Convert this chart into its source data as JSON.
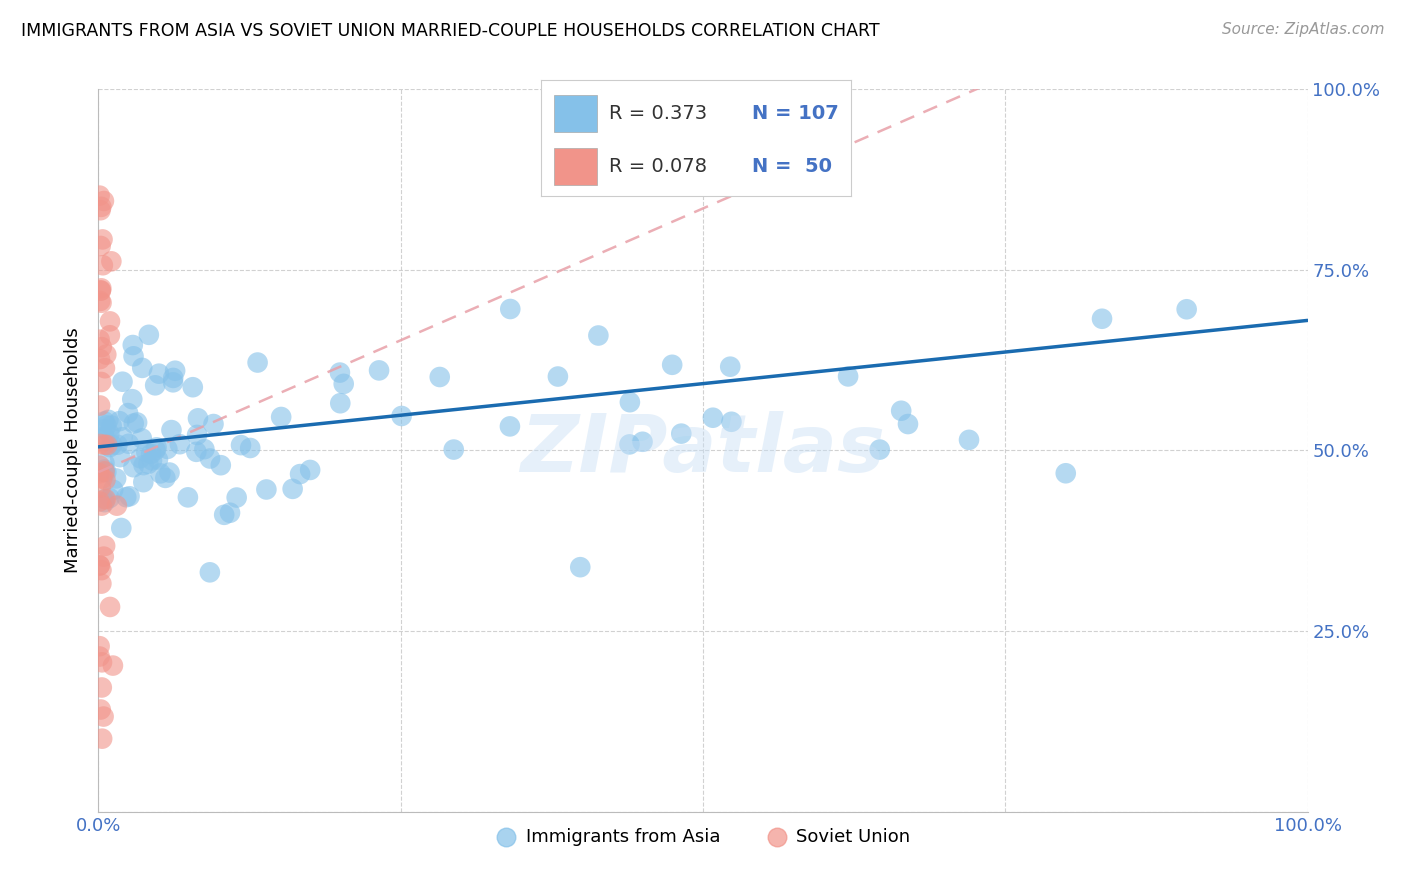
{
  "title": "IMMIGRANTS FROM ASIA VS SOVIET UNION MARRIED-COUPLE HOUSEHOLDS CORRELATION CHART",
  "source": "Source: ZipAtlas.com",
  "ylabel": "Married-couple Households",
  "watermark": "ZIPatlas",
  "asia_R": 0.373,
  "asia_N": 107,
  "soviet_R": 0.078,
  "soviet_N": 50,
  "asia_color": "#85C1E9",
  "soviet_color": "#F1948A",
  "asia_line_color": "#1A6BB0",
  "soviet_line_color": "#E8A0A8",
  "tick_color": "#4472C4",
  "grid_color": "#CCCCCC",
  "background_color": "#FFFFFF",
  "xlim": [
    0.0,
    1.0
  ],
  "ylim": [
    0.0,
    1.0
  ],
  "xticks": [
    0.0,
    0.25,
    0.5,
    0.75,
    1.0
  ],
  "yticks": [
    0.0,
    0.25,
    0.5,
    0.75,
    1.0
  ],
  "xtick_labels": [
    "0.0%",
    "",
    "",
    "",
    "100.0%"
  ],
  "ytick_labels_right": [
    "",
    "25.0%",
    "50.0%",
    "75.0%",
    "100.0%"
  ],
  "legend_label_asia": "Immigrants from Asia",
  "legend_label_soviet": "Soviet Union"
}
